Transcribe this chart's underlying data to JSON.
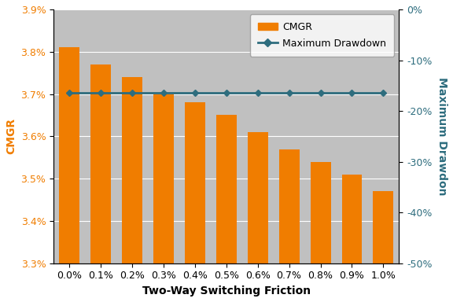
{
  "categories": [
    "0.0%",
    "0.1%",
    "0.2%",
    "0.3%",
    "0.4%",
    "0.5%",
    "0.6%",
    "0.7%",
    "0.8%",
    "0.9%",
    "1.0%"
  ],
  "cmgr_vals": [
    3.81,
    3.77,
    3.74,
    3.7,
    3.68,
    3.65,
    3.61,
    3.57,
    3.54,
    3.51,
    3.47
  ],
  "drawdown_vals": [
    -16.5,
    -16.5,
    -16.5,
    -16.5,
    -16.5,
    -16.5,
    -16.5,
    -16.5,
    -16.5,
    -16.5,
    -16.5
  ],
  "bar_color": "#F07D00",
  "line_color": "#2E6D7E",
  "background_color": "#C0C0C0",
  "xlabel": "Two-Way Switching Friction",
  "ylabel_left": "CMGR",
  "ylabel_right": "Maximum Drawdon",
  "left_color": "#F07D00",
  "right_color": "#2E6D7E",
  "ylim_left": [
    3.3,
    3.9
  ],
  "ylim_right": [
    -50,
    0
  ],
  "yticks_left": [
    3.3,
    3.4,
    3.5,
    3.6,
    3.7,
    3.8,
    3.9
  ],
  "yticks_right": [
    0,
    -10,
    -20,
    -30,
    -40,
    -50
  ],
  "label_fontsize": 10,
  "tick_fontsize": 9
}
